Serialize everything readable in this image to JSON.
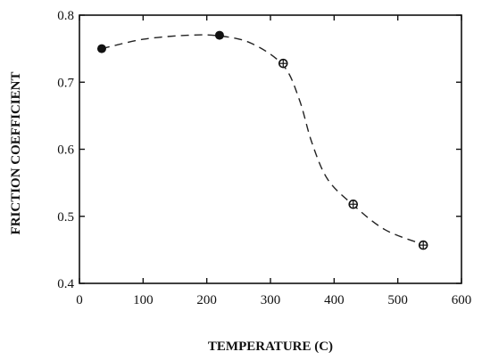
{
  "chart_data": {
    "type": "scatter",
    "xlabel": "TEMPERATURE (C)",
    "ylabel": "FRICTION COEFFICIENT",
    "xlim": [
      0,
      600
    ],
    "ylim": [
      0.4,
      0.8
    ],
    "x_ticks": [
      0,
      100,
      200,
      300,
      400,
      500,
      600
    ],
    "y_ticks": [
      0.4,
      0.5,
      0.6,
      0.7,
      0.8
    ],
    "x_tick_labels": [
      "0",
      "100",
      "200",
      "300",
      "400",
      "500",
      "600"
    ],
    "y_tick_labels": [
      "0.4",
      "0.5",
      "0.6",
      "0.7",
      "0.8"
    ],
    "points": [
      {
        "x": 35,
        "y": 0.75,
        "marker": "filled-circle"
      },
      {
        "x": 220,
        "y": 0.77,
        "marker": "filled-circle"
      },
      {
        "x": 320,
        "y": 0.728,
        "marker": "crossed-circle"
      },
      {
        "x": 430,
        "y": 0.518,
        "marker": "crossed-circle"
      },
      {
        "x": 540,
        "y": 0.457,
        "marker": "crossed-circle"
      }
    ],
    "fit_curve": {
      "style": "dashed",
      "points": [
        [
          35,
          0.75
        ],
        [
          100,
          0.764
        ],
        [
          170,
          0.77
        ],
        [
          220,
          0.769
        ],
        [
          270,
          0.758
        ],
        [
          320,
          0.725
        ],
        [
          345,
          0.675
        ],
        [
          365,
          0.61
        ],
        [
          390,
          0.555
        ],
        [
          430,
          0.517
        ],
        [
          480,
          0.48
        ],
        [
          540,
          0.458
        ]
      ]
    },
    "grid": false,
    "legend": "none"
  }
}
